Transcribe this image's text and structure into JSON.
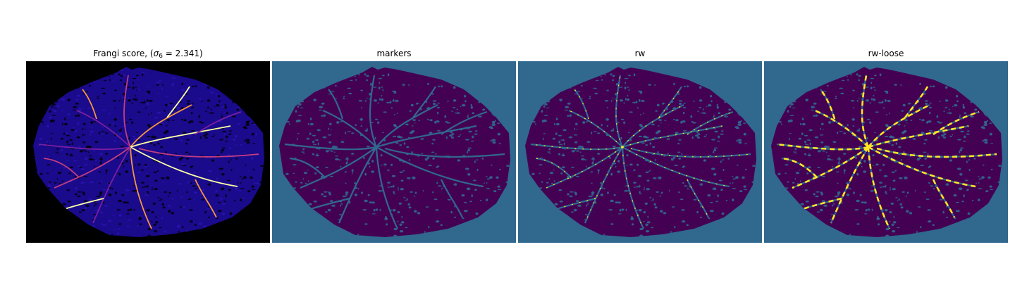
{
  "panels": [
    {
      "id": "frangi",
      "title_prefix": "Frangi score, (",
      "title_symbol": "σ",
      "title_subscript": "6",
      "title_suffix": " = 2.341)",
      "background": "#000000",
      "blob_color": "#1a0a8c",
      "texture_color": "#2b14b0",
      "vessel_colors": [
        "#7a1fa2",
        "#c23d80",
        "#f89540",
        "#fcffa4"
      ]
    },
    {
      "id": "markers",
      "title": "markers",
      "background": "#31688e",
      "blob_color": "#440154",
      "texture_color": "#3b0a4d",
      "vessel_colors": []
    },
    {
      "id": "rw",
      "title": "rw",
      "background": "#31688e",
      "blob_color": "#440154",
      "texture_color": "#3b0a4d",
      "vessel_colors": [
        "#fde725"
      ]
    },
    {
      "id": "rw-loose",
      "title": "rw-loose",
      "background": "#31688e",
      "blob_color": "#440154",
      "texture_color": "#3b0a4d",
      "vessel_colors": [
        "#fde725"
      ]
    }
  ]
}
